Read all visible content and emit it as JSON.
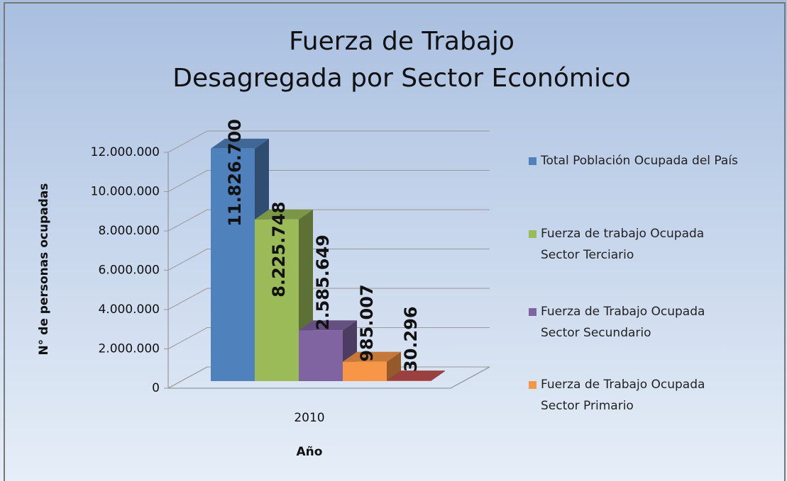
{
  "chart_data": {
    "type": "bar3d",
    "title_lines": [
      "Fuerza de Trabajo",
      "Desagregada por Sector Económico"
    ],
    "x_label": "Año",
    "y_label": "N° de personas ocupadas",
    "categories": [
      "2010"
    ],
    "series": [
      {
        "name": "Total Población Ocupada del País",
        "color": "#4f81bd",
        "values": [
          11826700
        ],
        "value_labels": [
          "11.826.700"
        ]
      },
      {
        "name": "Fuerza de trabajo Ocupada Sector Terciario",
        "color": "#9bbb59",
        "values": [
          8225748
        ],
        "value_labels": [
          "8.225.748"
        ]
      },
      {
        "name": "Fuerza de Trabajo Ocupada Sector Secundario",
        "color": "#8064a2",
        "values": [
          2585649
        ],
        "value_labels": [
          "2.585.649"
        ]
      },
      {
        "name": "Fuerza de Trabajo Ocupada Sector Primario",
        "color": "#f79646",
        "values": [
          985007
        ],
        "value_labels": [
          "985.007"
        ]
      },
      {
        "color": "#c0504d",
        "values": [
          30296
        ],
        "value_labels": [
          "30.296"
        ]
      }
    ],
    "ylim": [
      0,
      12000000
    ],
    "yticks": [
      0,
      {
        "value": 2000000,
        "label": "2.000.000"
      },
      {
        "value": 4000000,
        "label": "4.000.000"
      },
      {
        "value": 6000000,
        "label": "6.000.000"
      },
      {
        "value": 8000000,
        "label": "8.000.000"
      },
      {
        "value": 10000000,
        "label": "10.000.000"
      },
      {
        "value": 12000000,
        "label": "12.000.000"
      }
    ],
    "grid": true,
    "legend": "right"
  }
}
